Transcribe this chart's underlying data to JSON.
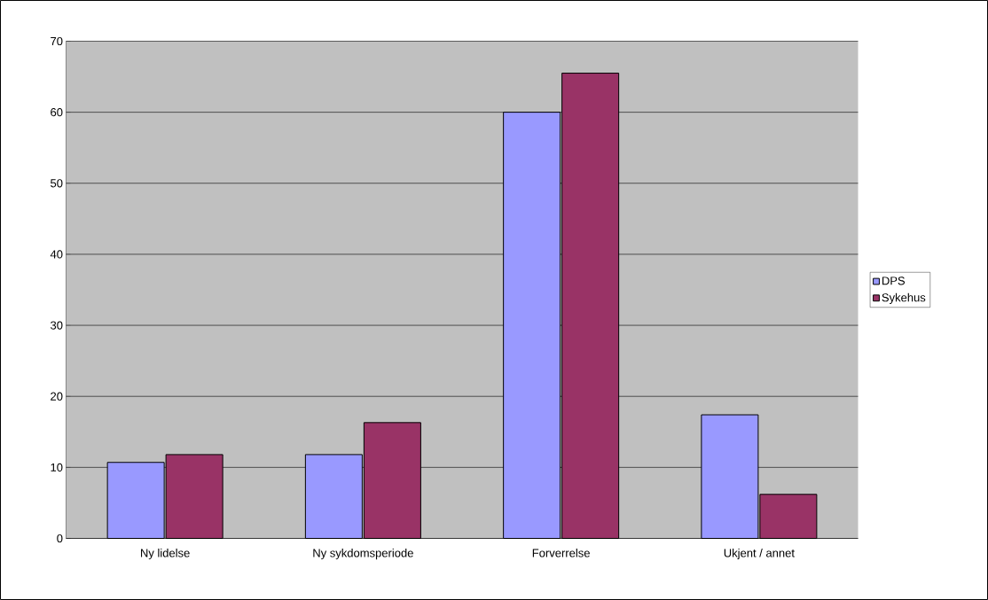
{
  "chart_data": {
    "type": "bar",
    "categories": [
      "Ny lidelse",
      "Ny sykdomsperiode",
      "Forverrelse",
      "Ukjent / annet"
    ],
    "series": [
      {
        "name": "DPS",
        "color": "#9999ff",
        "values": [
          10.7,
          11.8,
          60,
          17.4
        ]
      },
      {
        "name": "Sykehus",
        "color": "#993366",
        "values": [
          11.8,
          16.3,
          65.5,
          6.2
        ]
      }
    ],
    "ylim": [
      0,
      70
    ],
    "yticks": [
      0,
      10,
      20,
      30,
      40,
      50,
      60,
      70
    ],
    "grid": "y",
    "legend": "right"
  }
}
